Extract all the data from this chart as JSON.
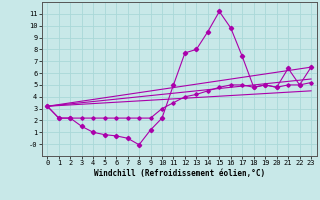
{
  "background_color": "#c8e8e8",
  "line_color": "#aa00aa",
  "xlim": [
    -0.5,
    23.5
  ],
  "ylim": [
    -1.0,
    12.0
  ],
  "xticks": [
    0,
    1,
    2,
    3,
    4,
    5,
    6,
    7,
    8,
    9,
    10,
    11,
    12,
    13,
    14,
    15,
    16,
    17,
    18,
    19,
    20,
    21,
    22,
    23
  ],
  "yticks": [
    0,
    1,
    2,
    3,
    4,
    5,
    6,
    7,
    8,
    9,
    10,
    11
  ],
  "ytick_labels": [
    "-0",
    "1",
    "2",
    "3",
    "4",
    "5",
    "6",
    "7",
    "8",
    "9",
    "10",
    "11"
  ],
  "xlabel": "Windchill (Refroidissement éolien,°C)",
  "grid_color": "#aad8d8",
  "line1_x": [
    0,
    1,
    2,
    3,
    4,
    5,
    6,
    7,
    8,
    9,
    10,
    11,
    12,
    13,
    14,
    15,
    16,
    17,
    18,
    19,
    20,
    21,
    22,
    23
  ],
  "line1_y": [
    3.2,
    2.2,
    2.2,
    1.5,
    1.0,
    0.8,
    0.7,
    0.5,
    -0.05,
    1.2,
    2.2,
    5.0,
    7.7,
    8.0,
    9.5,
    11.2,
    9.8,
    7.4,
    4.8,
    5.0,
    4.8,
    6.4,
    5.0,
    6.5
  ],
  "line2_x": [
    0,
    1,
    2,
    3,
    4,
    5,
    6,
    7,
    8,
    9,
    10,
    11,
    12,
    13,
    14,
    15,
    16,
    17,
    18,
    19,
    20,
    21,
    22,
    23
  ],
  "line2_y": [
    3.2,
    2.2,
    2.2,
    2.2,
    2.2,
    2.2,
    2.2,
    2.2,
    2.2,
    2.2,
    3.0,
    3.5,
    4.0,
    4.2,
    4.5,
    4.8,
    5.0,
    5.0,
    4.8,
    5.0,
    4.8,
    5.0,
    5.0,
    5.2
  ],
  "line3_x": [
    0,
    23
  ],
  "line3_y": [
    3.2,
    6.5
  ],
  "line4_x": [
    0,
    23
  ],
  "line4_y": [
    3.2,
    5.5
  ],
  "line5_x": [
    0,
    23
  ],
  "line5_y": [
    3.2,
    4.5
  ]
}
